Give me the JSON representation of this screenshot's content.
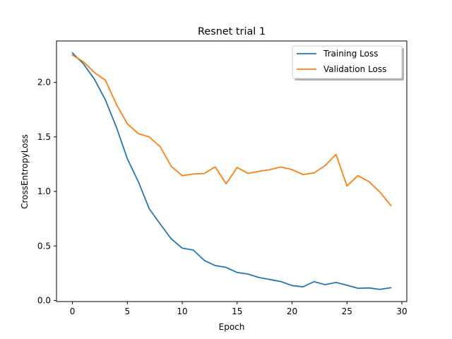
{
  "chart_data": {
    "type": "line",
    "title": "Resnet trial 1",
    "xlabel": "Epoch",
    "ylabel": "CrossEntropyLoss",
    "xlim": [
      -1.45,
      30.45
    ],
    "ylim": [
      -0.01,
      2.38
    ],
    "xticks": [
      0,
      5,
      10,
      15,
      20,
      25,
      30
    ],
    "yticks": [
      0.0,
      0.5,
      1.0,
      1.5,
      2.0
    ],
    "xtick_labels": [
      "0",
      "5",
      "10",
      "15",
      "20",
      "25",
      "30"
    ],
    "ytick_labels": [
      "0.0",
      "0.5",
      "1.0",
      "1.5",
      "2.0"
    ],
    "grid": false,
    "legend_position": "upper right",
    "x": [
      0,
      1,
      2,
      3,
      4,
      5,
      6,
      7,
      8,
      9,
      10,
      11,
      12,
      13,
      14,
      15,
      16,
      17,
      18,
      19,
      20,
      21,
      22,
      23,
      24,
      25,
      26,
      27,
      28,
      29
    ],
    "series": [
      {
        "name": "Training Loss",
        "color": "#1f77b4",
        "values": [
          2.27,
          2.17,
          2.03,
          1.84,
          1.59,
          1.3,
          1.09,
          0.84,
          0.7,
          0.565,
          0.48,
          0.463,
          0.368,
          0.32,
          0.303,
          0.257,
          0.242,
          0.21,
          0.192,
          0.173,
          0.137,
          0.125,
          0.173,
          0.145,
          0.166,
          0.14,
          0.112,
          0.115,
          0.102,
          0.117
        ]
      },
      {
        "name": "Validation Loss",
        "color": "#ff7f0e",
        "values": [
          2.25,
          2.19,
          2.09,
          2.02,
          1.8,
          1.62,
          1.53,
          1.5,
          1.41,
          1.23,
          1.145,
          1.16,
          1.165,
          1.225,
          1.07,
          1.22,
          1.165,
          1.185,
          1.2,
          1.225,
          1.2,
          1.155,
          1.17,
          1.235,
          1.34,
          1.05,
          1.145,
          1.09,
          0.995,
          0.87
        ]
      }
    ]
  }
}
